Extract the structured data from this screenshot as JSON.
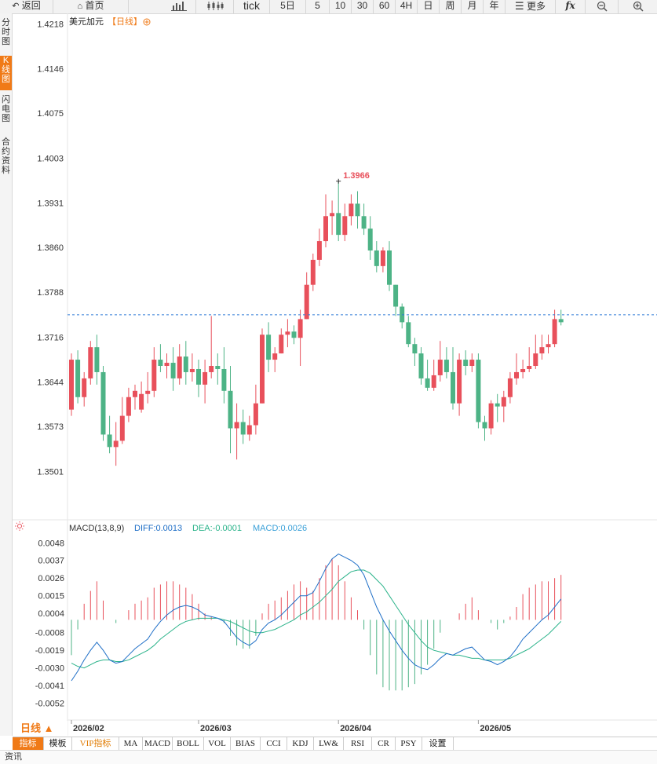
{
  "toolbar": {
    "back": "返回",
    "home": "首页",
    "tick": "tick",
    "day5": "5日",
    "m5": "5",
    "m10": "10",
    "m30": "30",
    "m60": "60",
    "h4": "4H",
    "day": "日",
    "week": "周",
    "month": "月",
    "year": "年",
    "more": "更多",
    "fx": "fx"
  },
  "sidebar": {
    "items": [
      "分时图",
      "K线图",
      "闪电图",
      "合约资料"
    ],
    "active_index": 1
  },
  "main": {
    "title": "美元加元",
    "period_tag": "【日线】",
    "high_label": "1.3966",
    "price_ticks": [
      "1.4218",
      "1.4146",
      "1.4075",
      "1.4003",
      "1.3931",
      "1.3860",
      "1.3788",
      "1.3716",
      "1.3644",
      "1.3573",
      "1.3501"
    ],
    "date_labels": [
      "2026/02",
      "2026/03",
      "2026/04",
      "2026/05"
    ],
    "period_button": "日线 ▲"
  },
  "macd": {
    "title": "MACD(13,8,9)",
    "diff": "DIFF:0.0013",
    "dea": "DEA:-0.0001",
    "macd": "MACD:0.0026",
    "ticks": [
      "0.0048",
      "0.0037",
      "0.0026",
      "0.0015",
      "0.0004",
      "-0.0008",
      "-0.0019",
      "-0.0030",
      "-0.0041",
      "-0.0052"
    ]
  },
  "bottom_tabs": [
    "指标",
    "模板",
    "VIP指标",
    "MA",
    "MACD",
    "BOLL",
    "VOL",
    "BIAS",
    "CCI",
    "KDJ",
    "LW&",
    "RSI",
    "CR",
    "PSY",
    "设置"
  ],
  "footer": "资讯",
  "colors": {
    "up": "#e8505b",
    "down": "#4db386",
    "accent": "#f07a17",
    "diff": "#1f6fc7",
    "dea": "#2bb38a"
  },
  "chart_data": {
    "type": "candlestick",
    "symbol": "USDCAD",
    "last_price": 1.3752,
    "high_marker": 1.3966,
    "ylim": [
      1.348,
      1.4235
    ],
    "candles": [
      [
        1.36,
        1.368,
        1.369,
        1.359
      ],
      [
        1.368,
        1.362,
        1.3695,
        1.361
      ],
      [
        1.362,
        1.365,
        1.366,
        1.3605
      ],
      [
        1.365,
        1.37,
        1.371,
        1.364
      ],
      [
        1.37,
        1.366,
        1.372,
        1.364
      ],
      [
        1.366,
        1.356,
        1.367,
        1.355
      ],
      [
        1.356,
        1.354,
        1.359,
        1.353
      ],
      [
        1.354,
        1.355,
        1.358,
        1.351
      ],
      [
        1.355,
        1.359,
        1.362,
        1.3545
      ],
      [
        1.359,
        1.362,
        1.3635,
        1.358
      ],
      [
        1.362,
        1.363,
        1.364,
        1.36
      ],
      [
        1.36,
        1.3625,
        1.3645,
        1.3595
      ],
      [
        1.3625,
        1.363,
        1.366,
        1.361
      ],
      [
        1.363,
        1.368,
        1.37,
        1.362
      ],
      [
        1.368,
        1.367,
        1.3705,
        1.366
      ],
      [
        1.367,
        1.3675,
        1.369,
        1.365
      ],
      [
        1.3675,
        1.365,
        1.37,
        1.363
      ],
      [
        1.365,
        1.3685,
        1.3705,
        1.364
      ],
      [
        1.3685,
        1.366,
        1.371,
        1.364
      ],
      [
        1.366,
        1.3665,
        1.369,
        1.3645
      ],
      [
        1.3665,
        1.364,
        1.368,
        1.362
      ],
      [
        1.364,
        1.366,
        1.368,
        1.361
      ],
      [
        1.366,
        1.367,
        1.375,
        1.365
      ],
      [
        1.367,
        1.3665,
        1.369,
        1.364
      ],
      [
        1.3665,
        1.363,
        1.37,
        1.361
      ],
      [
        1.363,
        1.357,
        1.367,
        1.353
      ],
      [
        1.357,
        1.358,
        1.361,
        1.352
      ],
      [
        1.358,
        1.356,
        1.36,
        1.3545
      ],
      [
        1.356,
        1.3575,
        1.359,
        1.355
      ],
      [
        1.3575,
        1.361,
        1.364,
        1.356
      ],
      [
        1.361,
        1.372,
        1.373,
        1.361
      ],
      [
        1.372,
        1.368,
        1.374,
        1.366
      ],
      [
        1.368,
        1.369,
        1.37,
        1.366
      ],
      [
        1.369,
        1.372,
        1.373,
        1.369
      ],
      [
        1.372,
        1.3725,
        1.3745,
        1.37
      ],
      [
        1.3725,
        1.3715,
        1.3735,
        1.3705
      ],
      [
        1.3715,
        1.3745,
        1.376,
        1.367
      ],
      [
        1.3745,
        1.38,
        1.382,
        1.3745
      ],
      [
        1.38,
        1.384,
        1.385,
        1.379
      ],
      [
        1.384,
        1.387,
        1.389,
        1.383
      ],
      [
        1.387,
        1.391,
        1.3945,
        1.386
      ],
      [
        1.391,
        1.3915,
        1.3935,
        1.388
      ],
      [
        1.3915,
        1.388,
        1.3966,
        1.387
      ],
      [
        1.388,
        1.391,
        1.393,
        1.387
      ],
      [
        1.391,
        1.393,
        1.3945,
        1.3895
      ],
      [
        1.393,
        1.391,
        1.395,
        1.389
      ],
      [
        1.391,
        1.389,
        1.393,
        1.388
      ],
      [
        1.389,
        1.3855,
        1.391,
        1.384
      ],
      [
        1.3855,
        1.383,
        1.387,
        1.382
      ],
      [
        1.383,
        1.3855,
        1.386,
        1.382
      ],
      [
        1.3855,
        1.38,
        1.387,
        1.379
      ],
      [
        1.38,
        1.3765,
        1.38,
        1.375
      ],
      [
        1.3765,
        1.374,
        1.377,
        1.373
      ],
      [
        1.374,
        1.3705,
        1.375,
        1.37
      ],
      [
        1.3705,
        1.369,
        1.3715,
        1.367
      ],
      [
        1.369,
        1.365,
        1.37,
        1.364
      ],
      [
        1.365,
        1.3635,
        1.368,
        1.363
      ],
      [
        1.3635,
        1.3655,
        1.368,
        1.363
      ],
      [
        1.3655,
        1.368,
        1.371,
        1.3645
      ],
      [
        1.368,
        1.366,
        1.37,
        1.365
      ],
      [
        1.366,
        1.361,
        1.37,
        1.36
      ],
      [
        1.361,
        1.368,
        1.369,
        1.359
      ],
      [
        1.368,
        1.367,
        1.3695,
        1.3655
      ],
      [
        1.367,
        1.368,
        1.369,
        1.366
      ],
      [
        1.368,
        1.358,
        1.369,
        1.357
      ],
      [
        1.358,
        1.357,
        1.359,
        1.355
      ],
      [
        1.357,
        1.361,
        1.3615,
        1.356
      ],
      [
        1.361,
        1.3605,
        1.3625,
        1.358
      ],
      [
        1.3605,
        1.362,
        1.363,
        1.358
      ],
      [
        1.362,
        1.365,
        1.366,
        1.361
      ],
      [
        1.365,
        1.366,
        1.369,
        1.364
      ],
      [
        1.366,
        1.3665,
        1.368,
        1.365
      ],
      [
        1.3665,
        1.367,
        1.37,
        1.366
      ],
      [
        1.367,
        1.369,
        1.372,
        1.3665
      ],
      [
        1.369,
        1.37,
        1.372,
        1.368
      ],
      [
        1.37,
        1.3705,
        1.372,
        1.369
      ],
      [
        1.3705,
        1.3745,
        1.376,
        1.37
      ],
      [
        1.3745,
        1.374,
        1.376,
        1.3735
      ]
    ],
    "macd_ylim": [
      -0.006,
      0.0054
    ],
    "diff": [
      -0.0038,
      -0.0032,
      -0.0025,
      -0.0019,
      -0.0014,
      -0.0019,
      -0.0025,
      -0.0027,
      -0.0026,
      -0.0022,
      -0.0018,
      -0.0015,
      -0.0012,
      -0.0006,
      -0.0001,
      0.0003,
      0.0006,
      0.0008,
      0.0009,
      0.0008,
      0.0006,
      0.0003,
      0.0002,
      0.0001,
      -0.0001,
      -0.0006,
      -0.0011,
      -0.0014,
      -0.0016,
      -0.0013,
      -0.0006,
      -0.0002,
      0.0,
      0.0003,
      0.0007,
      0.0011,
      0.0015,
      0.0015,
      0.0017,
      0.0024,
      0.0032,
      0.0038,
      0.0041,
      0.0039,
      0.0037,
      0.0034,
      0.0028,
      0.0018,
      0.0008,
      0.0,
      -0.0007,
      -0.0013,
      -0.0019,
      -0.0024,
      -0.0028,
      -0.003,
      -0.0031,
      -0.0028,
      -0.0024,
      -0.0021,
      -0.0022,
      -0.002,
      -0.0018,
      -0.0017,
      -0.0021,
      -0.0025,
      -0.0026,
      -0.0028,
      -0.0026,
      -0.0023,
      -0.0018,
      -0.0012,
      -0.0008,
      -0.0004,
      0.0,
      0.0003,
      0.0008,
      0.0013
    ],
    "dea": [
      -0.0027,
      -0.0029,
      -0.003,
      -0.0028,
      -0.0026,
      -0.0025,
      -0.0025,
      -0.0026,
      -0.0026,
      -0.0025,
      -0.0023,
      -0.0021,
      -0.0019,
      -0.0016,
      -0.0012,
      -0.0009,
      -0.0006,
      -0.0003,
      -0.0001,
      0.0,
      0.0001,
      0.0001,
      0.0001,
      0.0001,
      0.0,
      -0.0001,
      -0.0003,
      -0.0005,
      -0.0007,
      -0.0008,
      -0.0008,
      -0.0007,
      -0.0006,
      -0.0004,
      -0.0002,
      0.0,
      0.0003,
      0.0005,
      0.0008,
      0.0011,
      0.0015,
      0.0019,
      0.0024,
      0.0027,
      0.003,
      0.0031,
      0.0031,
      0.0029,
      0.0025,
      0.0021,
      0.0015,
      0.0009,
      0.0003,
      -0.0003,
      -0.0008,
      -0.0013,
      -0.0017,
      -0.0019,
      -0.002,
      -0.0021,
      -0.0022,
      -0.0022,
      -0.0023,
      -0.0024,
      -0.0024,
      -0.0025,
      -0.0025,
      -0.0025,
      -0.0025,
      -0.0024,
      -0.0022,
      -0.002,
      -0.0018,
      -0.0015,
      -0.0012,
      -0.0009,
      -0.0005,
      -0.0001
    ]
  }
}
